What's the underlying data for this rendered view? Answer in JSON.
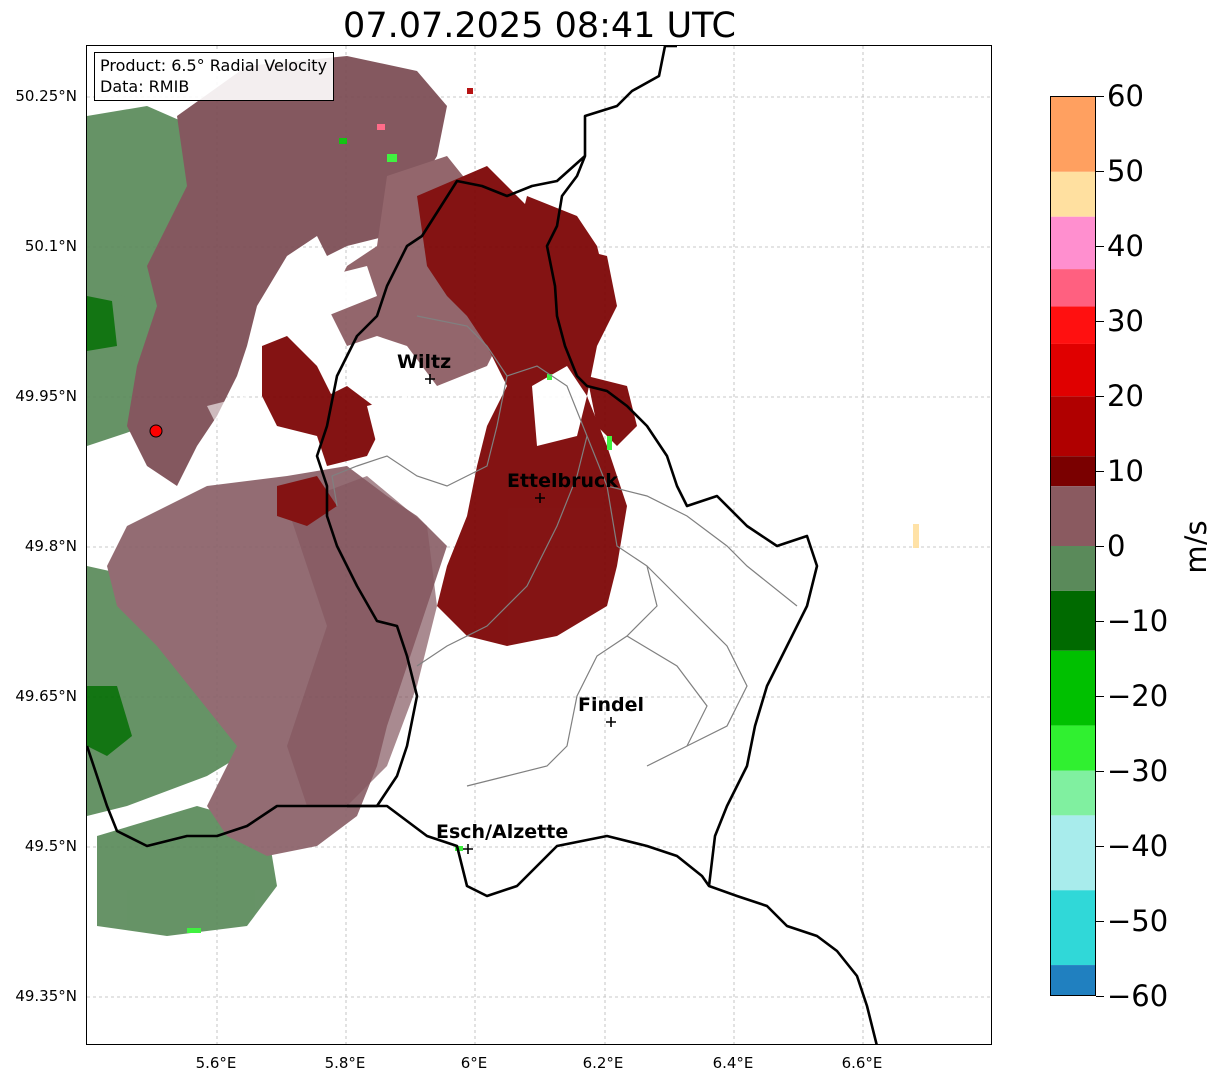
{
  "title": "07.07.2025 08:41 UTC",
  "infobox": {
    "product_line": "Product: 6.5° Radial Velocity",
    "data_line": "Data: RMIB"
  },
  "map": {
    "lon_range": [
      5.4,
      6.8
    ],
    "lat_range": [
      49.3,
      50.3
    ],
    "lat_ticks": [
      {
        "value": 50.25,
        "label": "50.25°N"
      },
      {
        "value": 50.1,
        "label": "50.1°N"
      },
      {
        "value": 49.95,
        "label": "49.95°N"
      },
      {
        "value": 49.8,
        "label": "49.8°N"
      },
      {
        "value": 49.65,
        "label": "49.65°N"
      },
      {
        "value": 49.5,
        "label": "49.5°N"
      },
      {
        "value": 49.35,
        "label": "49.35°N"
      }
    ],
    "lon_ticks": [
      {
        "value": 5.6,
        "label": "5.6°E"
      },
      {
        "value": 5.8,
        "label": "5.8°E"
      },
      {
        "value": 6.0,
        "label": "6°E"
      },
      {
        "value": 6.2,
        "label": "6.2°E"
      },
      {
        "value": 6.4,
        "label": "6.4°E"
      },
      {
        "value": 6.6,
        "label": "6.6°E"
      }
    ],
    "cities": [
      {
        "name": "Wiltz",
        "lon": 5.93,
        "lat": 49.97
      },
      {
        "name": "Ettelbruck",
        "lon": 6.1,
        "lat": 49.85
      },
      {
        "name": "Findel",
        "lon": 6.21,
        "lat": 49.63
      },
      {
        "name": "Esch/Alzette",
        "lon": 5.99,
        "lat": 49.5
      }
    ],
    "radar_site": {
      "lon": 5.51,
      "lat": 49.92,
      "color": "#ff0000"
    },
    "grid": "on"
  },
  "colorbar": {
    "unit": "m/s",
    "range": [
      -60,
      60
    ],
    "ticks": [
      "60",
      "50",
      "40",
      "30",
      "20",
      "10",
      "0",
      "−10",
      "−20",
      "−30",
      "−40",
      "−50",
      "−60"
    ],
    "stops": [
      {
        "from": 50,
        "to": 60,
        "color": "#ffa060"
      },
      {
        "from": 44,
        "to": 50,
        "color": "#ffe0a0"
      },
      {
        "from": 37,
        "to": 44,
        "color": "#ff8fcf"
      },
      {
        "from": 32,
        "to": 37,
        "color": "#ff6080"
      },
      {
        "from": 27,
        "to": 32,
        "color": "#ff1010"
      },
      {
        "from": 20,
        "to": 27,
        "color": "#e00000"
      },
      {
        "from": 12,
        "to": 20,
        "color": "#b00000"
      },
      {
        "from": 8,
        "to": 12,
        "color": "#7a0000"
      },
      {
        "from": 0,
        "to": 8,
        "color": "#8a5a60"
      },
      {
        "from": -6,
        "to": 0,
        "color": "#5a8a5a"
      },
      {
        "from": -14,
        "to": -6,
        "color": "#006a00"
      },
      {
        "from": -24,
        "to": -14,
        "color": "#00c000"
      },
      {
        "from": -30,
        "to": -24,
        "color": "#30f030"
      },
      {
        "from": -36,
        "to": -30,
        "color": "#80f0a0"
      },
      {
        "from": -46,
        "to": -36,
        "color": "#a8ecec"
      },
      {
        "from": -56,
        "to": -46,
        "color": "#30d8d8"
      },
      {
        "from": -60,
        "to": -56,
        "color": "#2080c0"
      }
    ]
  }
}
